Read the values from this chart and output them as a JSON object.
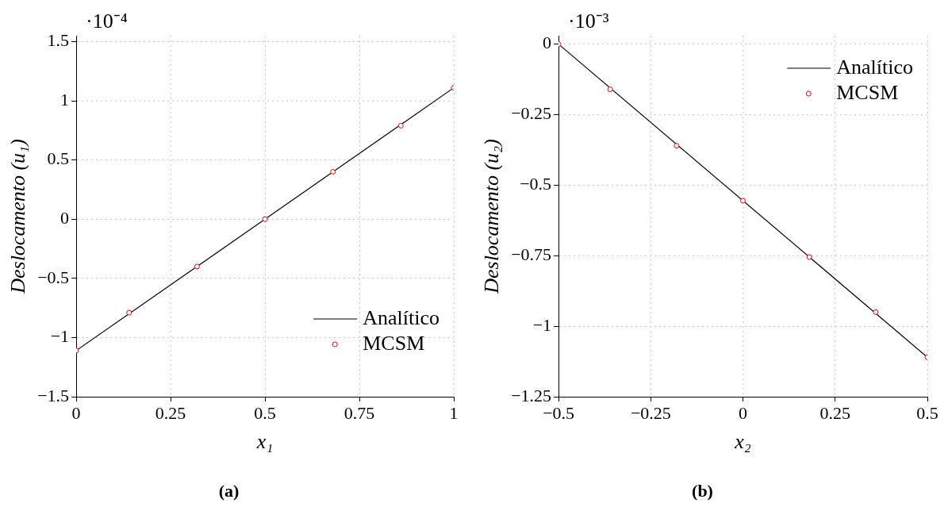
{
  "chart_data": [
    {
      "type": "line",
      "title": "(a)",
      "xlabel": "x₁",
      "ylabel": "Deslocamento (u₁)",
      "annotations": [
        "·10⁻⁴"
      ],
      "xlim": [
        0,
        1
      ],
      "xticks": [
        0,
        0.25,
        0.5,
        0.75,
        1
      ],
      "ylim": [
        -1.5,
        1.55
      ],
      "yticks": [
        {
          "value": -1.5,
          "label": "−1.5"
        },
        {
          "value": -1,
          "label": "−1"
        },
        {
          "value": -0.5,
          "label": "−0.5"
        },
        0,
        0.5,
        1,
        1.5
      ],
      "grid": true,
      "legend": "bottom right",
      "series": [
        {
          "name": "Analítico",
          "type": "line",
          "color": "#000000",
          "marker": "none",
          "x": [
            0,
            1
          ],
          "values": [
            -1.11,
            1.11
          ]
        },
        {
          "name": "MCSM",
          "type": "scatter",
          "color": "#ff0000",
          "marker": "circle",
          "x": [
            0,
            0.14,
            0.32,
            0.5,
            0.68,
            0.86,
            1
          ],
          "values": [
            -1.11,
            -0.79,
            -0.4,
            0,
            0.4,
            0.79,
            1.11
          ]
        }
      ]
    },
    {
      "type": "line",
      "title": "(b)",
      "xlabel": "x₂",
      "ylabel": "Deslocamento (u₂)",
      "annotations": [
        "·10⁻³"
      ],
      "xlim": [
        -0.5,
        0.5
      ],
      "xticks": [
        {
          "value": -0.5,
          "label": "−0.5"
        },
        {
          "value": -0.25,
          "label": "−0.25"
        },
        0,
        0.25,
        0.5
      ],
      "ylim": [
        -1.25,
        0.03
      ],
      "yticks": [
        {
          "value": -1.25,
          "label": "−1.25"
        },
        {
          "value": -1,
          "label": "−1"
        },
        {
          "value": -0.75,
          "label": "−0.75"
        },
        {
          "value": -0.5,
          "label": "−0.5"
        },
        {
          "value": -0.25,
          "label": "−0.25"
        },
        0
      ],
      "grid": true,
      "legend": "top right",
      "series": [
        {
          "name": "Analítico",
          "type": "line",
          "color": "#000000",
          "marker": "none",
          "x": [
            -0.5,
            0.5
          ],
          "values": [
            0,
            -1.11
          ]
        },
        {
          "name": "MCSM",
          "type": "scatter",
          "color": "#ff0000",
          "marker": "circle",
          "x": [
            -0.5,
            -0.36,
            -0.18,
            0,
            0.18,
            0.36,
            0.5
          ],
          "values": [
            0,
            -0.16,
            -0.36,
            -0.555,
            -0.755,
            -0.95,
            -1.11
          ]
        }
      ]
    }
  ]
}
